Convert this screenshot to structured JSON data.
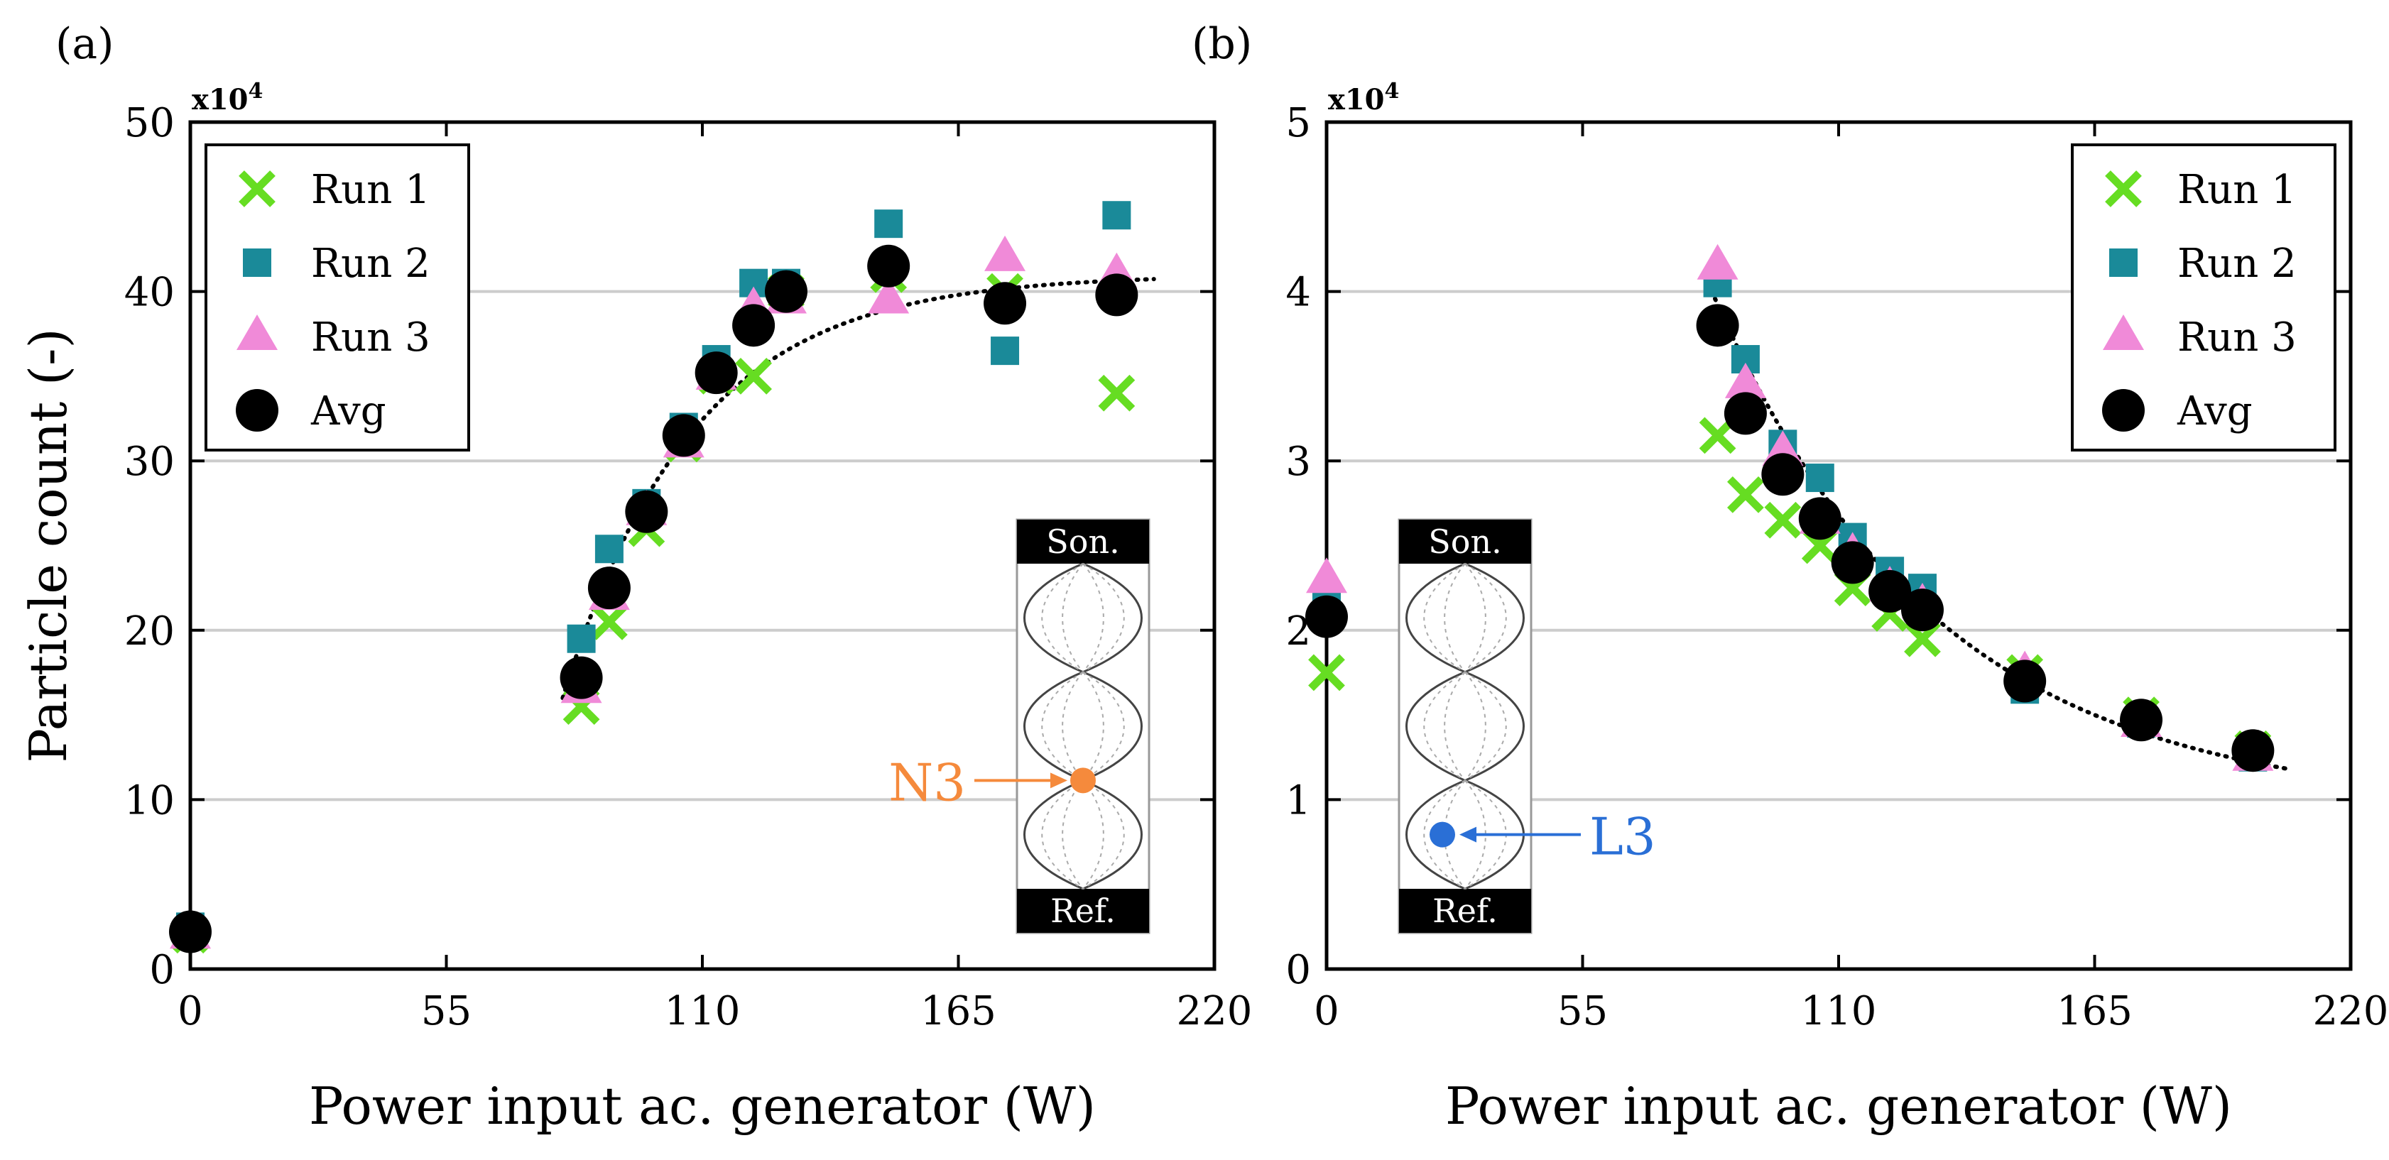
{
  "figure": {
    "colors": {
      "run1": "#66dd22",
      "run2": "#1a8a99",
      "run3": "#f08ad8",
      "avg": "#000000",
      "node_marker": "#f58a3c",
      "loop_marker": "#2a6fd6",
      "grid": "#cccccc"
    }
  },
  "chart_data": [
    {
      "type": "scatter",
      "panel_label": "(a)",
      "xlabel": "Power input ac. generator (W)",
      "ylabel": "Particle count (-)",
      "y_multiplier": "x10",
      "y_multiplier_exp": "4",
      "xlim": [
        0,
        220
      ],
      "ylim": [
        0,
        50
      ],
      "xticks": [
        0,
        55,
        110,
        165,
        220
      ],
      "yticks": [
        0,
        10,
        20,
        30,
        40,
        50
      ],
      "grid": "horizontal",
      "legend_position": "top-left",
      "series": [
        {
          "name": "Run 1",
          "marker": "x",
          "color_key": "run1",
          "x": [
            0,
            84,
            90,
            98,
            106,
            113,
            121,
            128,
            150,
            175,
            199
          ],
          "y": [
            2.0,
            15.5,
            20.5,
            26.0,
            31.0,
            35.0,
            35.0,
            40.0,
            41.0,
            40.0,
            34.0
          ]
        },
        {
          "name": "Run 2",
          "marker": "square",
          "color_key": "run2",
          "x": [
            0,
            84,
            90,
            98,
            106,
            113,
            121,
            128,
            150,
            175,
            199
          ],
          "y": [
            2.5,
            19.5,
            24.8,
            27.5,
            32.0,
            36.0,
            40.5,
            40.5,
            44.0,
            36.5,
            44.5
          ]
        },
        {
          "name": "Run 3",
          "marker": "triangle",
          "color_key": "run3",
          "x": [
            0,
            84,
            90,
            98,
            106,
            113,
            121,
            128,
            150,
            175,
            199
          ],
          "y": [
            2.0,
            16.5,
            22.0,
            27.0,
            31.0,
            35.0,
            39.0,
            39.5,
            39.5,
            42.0,
            41.0
          ]
        },
        {
          "name": "Avg",
          "marker": "circle",
          "color_key": "avg",
          "x": [
            0,
            84,
            90,
            98,
            106,
            113,
            121,
            128,
            150,
            175,
            199
          ],
          "y": [
            2.2,
            17.2,
            22.5,
            27.0,
            31.5,
            35.2,
            38.0,
            40.0,
            41.5,
            39.3,
            39.8
          ]
        }
      ],
      "fit": {
        "style": "dotted",
        "formula": "41*(1-exp(-(x-80)/28))+16*exp(-(x-80)/28)",
        "x_range": [
          80,
          207
        ]
      },
      "inset": {
        "top_label": "Son.",
        "bottom_label": "Ref.",
        "marker_label": "N3",
        "marker_type": "node",
        "color_key": "node_marker",
        "side": "right"
      }
    },
    {
      "type": "scatter",
      "panel_label": "(b)",
      "xlabel": "Power input ac. generator (W)",
      "ylabel": "",
      "y_multiplier": "x10",
      "y_multiplier_exp": "4",
      "xlim": [
        0,
        220
      ],
      "ylim": [
        0,
        5
      ],
      "xticks": [
        0,
        55,
        110,
        165,
        220
      ],
      "yticks": [
        0,
        1,
        2,
        3,
        4,
        5
      ],
      "grid": "horizontal",
      "legend_position": "top-right",
      "series": [
        {
          "name": "Run 1",
          "marker": "x",
          "color_key": "run1",
          "x": [
            0,
            84,
            90,
            98,
            106,
            113,
            121,
            128,
            150,
            175,
            199
          ],
          "y": [
            1.75,
            3.15,
            2.8,
            2.65,
            2.5,
            2.25,
            2.1,
            1.95,
            1.75,
            1.5,
            1.3
          ]
        },
        {
          "name": "Run 2",
          "marker": "square",
          "color_key": "run2",
          "x": [
            0,
            84,
            90,
            98,
            106,
            113,
            121,
            128,
            150,
            175,
            199
          ],
          "y": [
            2.2,
            4.05,
            3.6,
            3.1,
            2.9,
            2.55,
            2.35,
            2.25,
            1.65,
            1.45,
            1.25
          ]
        },
        {
          "name": "Run 3",
          "marker": "triangle",
          "color_key": "run3",
          "x": [
            0,
            84,
            90,
            98,
            106,
            113,
            121,
            128,
            150,
            175,
            199
          ],
          "y": [
            2.3,
            4.15,
            3.45,
            3.05,
            2.65,
            2.45,
            2.25,
            2.15,
            1.75,
            1.45,
            1.25
          ]
        },
        {
          "name": "Avg",
          "marker": "circle",
          "color_key": "avg",
          "x": [
            0,
            84,
            90,
            98,
            106,
            113,
            121,
            128,
            150,
            175,
            199
          ],
          "y": [
            2.08,
            3.8,
            3.28,
            2.92,
            2.66,
            2.4,
            2.23,
            2.12,
            1.7,
            1.47,
            1.29
          ]
        }
      ],
      "fit": {
        "style": "dotted",
        "formula": "0.95+3.1*exp(-(x-82)/48)",
        "x_range": [
          82,
          207
        ]
      },
      "inset": {
        "top_label": "Son.",
        "bottom_label": "Ref.",
        "marker_label": "L3",
        "marker_type": "loop",
        "color_key": "loop_marker",
        "side": "left"
      }
    }
  ]
}
